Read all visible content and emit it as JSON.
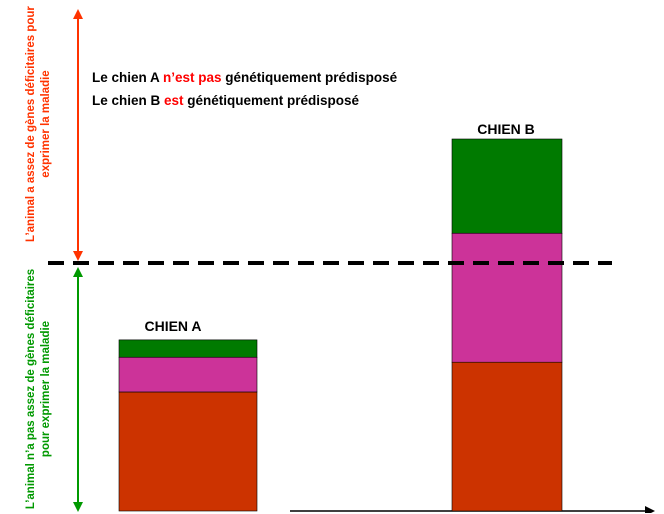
{
  "legend": {
    "line1": {
      "prefix": "Le chien A ",
      "highlight": "n’est pas",
      "suffix": " génétiquement prédisposé"
    },
    "line2": {
      "prefix": "Le chien B ",
      "highlight": "est",
      "suffix": " génétiquement prédisposé"
    }
  },
  "upper_zone_label": "L’animal a assez de gènes déficitaires pour exprimer la maladie",
  "lower_zone_label": "L’animal n’a pas assez de gènes déficitaires pour exprimer la maladie",
  "bars": [
    {
      "label": "CHIEN A",
      "segments": [
        {
          "color": "#cc3300",
          "value": 0.48
        },
        {
          "color": "#cc3399",
          "value": 0.14
        },
        {
          "color": "#007a00",
          "value": 0.07
        }
      ]
    },
    {
      "label": "CHIEN B",
      "segments": [
        {
          "color": "#cc3300",
          "value": 0.6
        },
        {
          "color": "#cc3399",
          "value": 0.52
        },
        {
          "color": "#007a00",
          "value": 0.38
        }
      ]
    }
  ],
  "threshold": 1.0,
  "colors": {
    "red_arrow": "#ff3300",
    "green_arrow": "#009900",
    "highlight_text": "#ff0000",
    "upper_label": "#ff3300",
    "lower_label": "#009900"
  }
}
